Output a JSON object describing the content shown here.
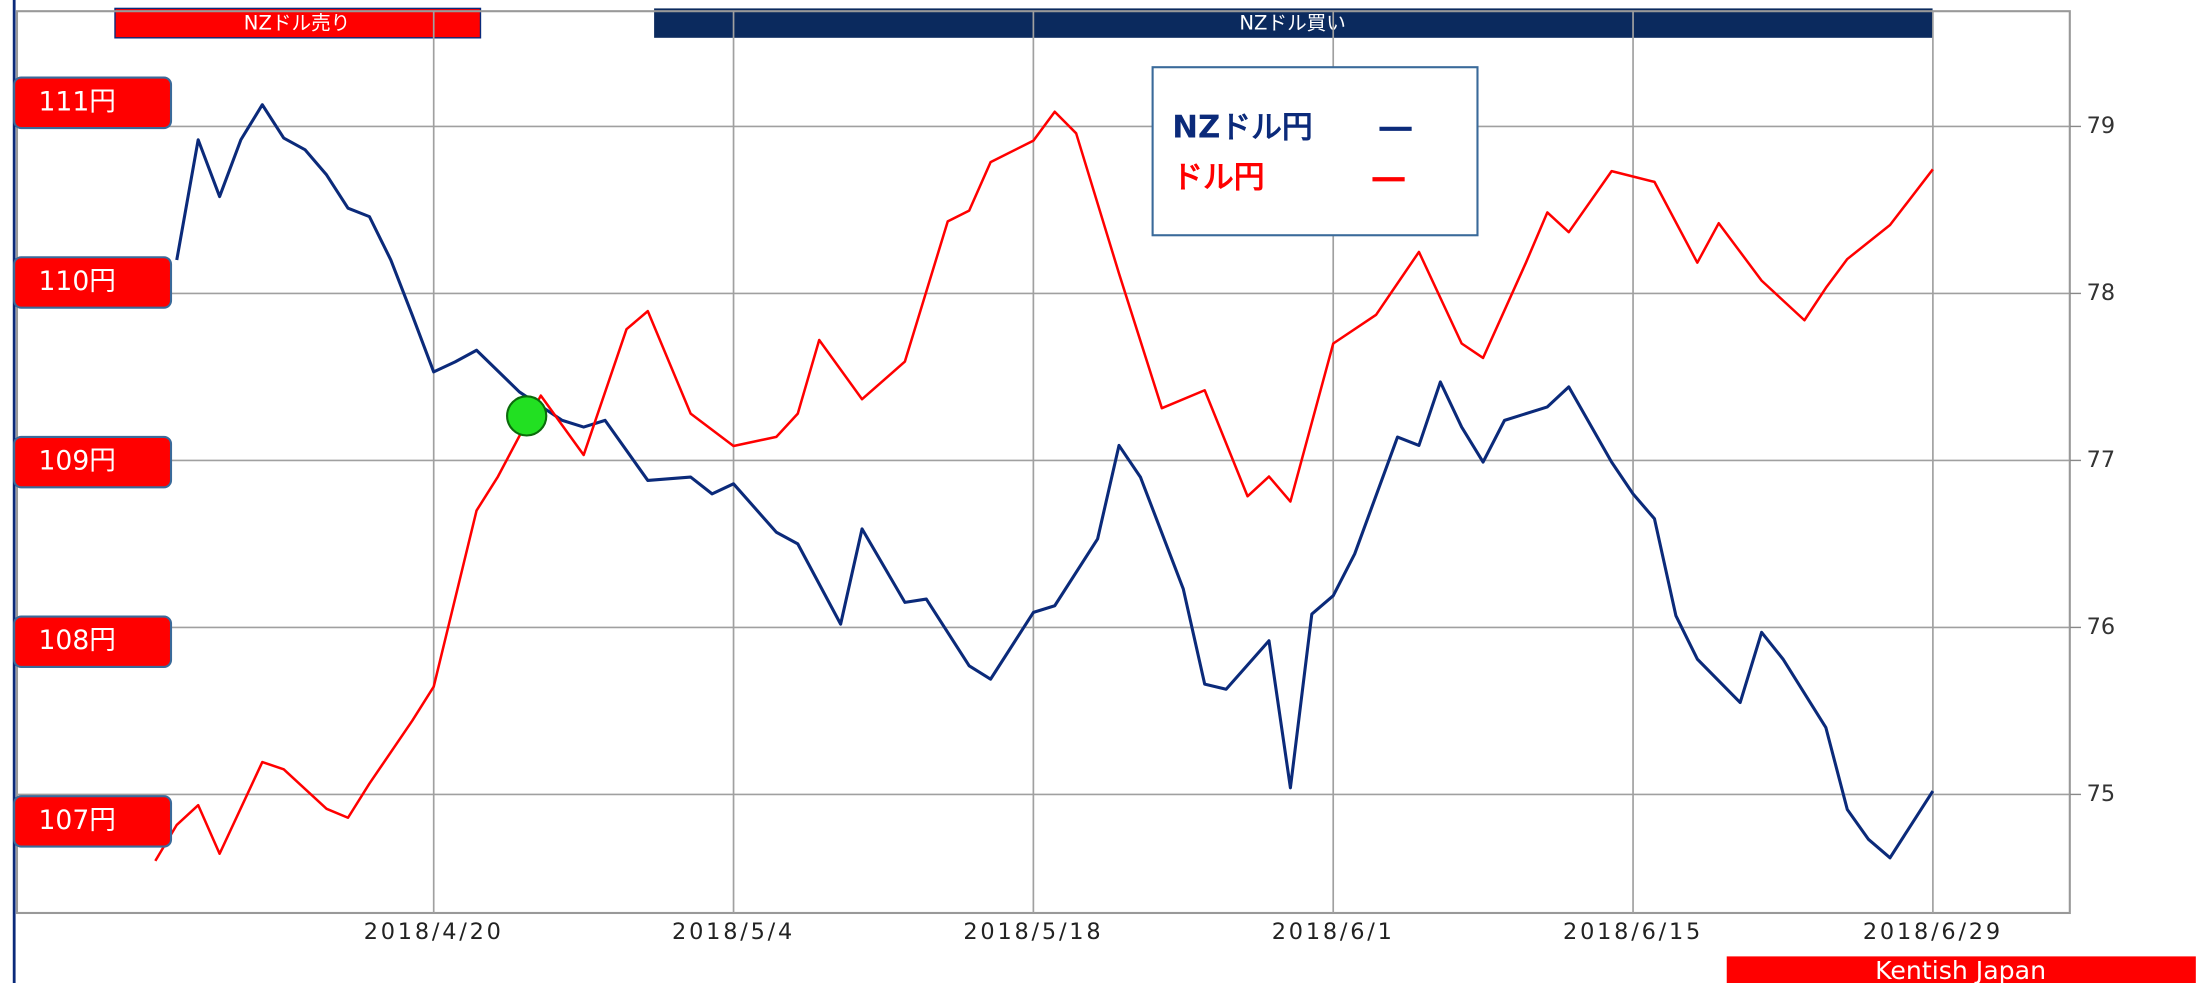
{
  "chart_data": {
    "type": "line",
    "banners": [
      "NZドル売り",
      "NZドル買い"
    ],
    "footer": "Kentish Japan",
    "xlim": [
      "2018/4/1",
      "2018/7/5"
    ],
    "xticks": [
      "2018/4/20",
      "2018/5/4",
      "2018/5/18",
      "2018/6/1",
      "2018/6/15",
      "2018/6/29"
    ],
    "ylim": [
      74.29,
      79.69
    ],
    "yticks": [
      75,
      76,
      77,
      78,
      79
    ],
    "y2lim": [
      106.49,
      111.51
    ],
    "y2ticks": [
      {
        "value": 107,
        "label": "107円"
      },
      {
        "value": 108,
        "label": "108円"
      },
      {
        "value": 109,
        "label": "109円"
      },
      {
        "value": 110,
        "label": "110円"
      },
      {
        "value": 111,
        "label": "111円"
      }
    ],
    "grid": true,
    "series": [
      {
        "name": "NZドル円",
        "color": "#0b2a7a",
        "axis": "y",
        "x": [
          "2018/4/8",
          "2018/4/9",
          "2018/4/10",
          "2018/4/11",
          "2018/4/12",
          "2018/4/13",
          "2018/4/14",
          "2018/4/15",
          "2018/4/16",
          "2018/4/17",
          "2018/4/18",
          "2018/4/19",
          "2018/4/20",
          "2018/4/21",
          "2018/4/22",
          "2018/4/24",
          "2018/4/26",
          "2018/4/27",
          "2018/4/28",
          "2018/4/30",
          "2018/5/2",
          "2018/5/3",
          "2018/5/4",
          "2018/5/6",
          "2018/5/7",
          "2018/5/9",
          "2018/5/10",
          "2018/5/12",
          "2018/5/13",
          "2018/5/15",
          "2018/5/16",
          "2018/5/18",
          "2018/5/19",
          "2018/5/21",
          "2018/5/22",
          "2018/5/23",
          "2018/5/25",
          "2018/5/26",
          "2018/5/27",
          "2018/5/29",
          "2018/5/30",
          "2018/5/31",
          "2018/6/1",
          "2018/6/2",
          "2018/6/4",
          "2018/6/5",
          "2018/6/6",
          "2018/6/7",
          "2018/6/8",
          "2018/6/9",
          "2018/6/11",
          "2018/6/12",
          "2018/6/14",
          "2018/6/15",
          "2018/6/16",
          "2018/6/17",
          "2018/6/18",
          "2018/6/20",
          "2018/6/21",
          "2018/6/22",
          "2018/6/24",
          "2018/6/25",
          "2018/6/26",
          "2018/6/27",
          "2018/6/29"
        ],
        "values": [
          78.2,
          78.92,
          78.58,
          78.92,
          79.13,
          78.93,
          78.86,
          78.71,
          78.51,
          78.46,
          78.2,
          77.87,
          77.53,
          77.59,
          77.66,
          77.41,
          77.24,
          77.2,
          77.24,
          76.88,
          76.9,
          76.8,
          76.86,
          76.57,
          76.5,
          76.02,
          76.59,
          76.15,
          76.17,
          75.77,
          75.69,
          76.09,
          76.13,
          76.53,
          77.09,
          76.9,
          76.23,
          75.66,
          75.63,
          75.92,
          75.04,
          76.08,
          76.19,
          76.44,
          77.14,
          77.09,
          77.47,
          77.2,
          76.99,
          77.24,
          77.32,
          77.44,
          76.99,
          76.8,
          76.65,
          76.07,
          75.81,
          75.55,
          75.97,
          75.81,
          75.4,
          74.91,
          74.73,
          74.62,
          75.02
        ]
      },
      {
        "name": "ドル円",
        "color": "#ff0000",
        "axis": "y2",
        "x": [
          "2018/4/7",
          "2018/4/8",
          "2018/4/9",
          "2018/4/10",
          "2018/4/12",
          "2018/4/13",
          "2018/4/15",
          "2018/4/16",
          "2018/4/17",
          "2018/4/19",
          "2018/4/20",
          "2018/4/22",
          "2018/4/23",
          "2018/4/25",
          "2018/4/27",
          "2018/4/29",
          "2018/4/30",
          "2018/5/2",
          "2018/5/4",
          "2018/5/6",
          "2018/5/7",
          "2018/5/8",
          "2018/5/10",
          "2018/5/12",
          "2018/5/14",
          "2018/5/15",
          "2018/5/16",
          "2018/5/18",
          "2018/5/19",
          "2018/5/20",
          "2018/5/22",
          "2018/5/24",
          "2018/5/26",
          "2018/5/28",
          "2018/5/29",
          "2018/5/30",
          "2018/6/1",
          "2018/6/3",
          "2018/6/5",
          "2018/6/7",
          "2018/6/8",
          "2018/6/10",
          "2018/6/11",
          "2018/6/12",
          "2018/6/14",
          "2018/6/16",
          "2018/6/18",
          "2018/6/19",
          "2018/6/21",
          "2018/6/23",
          "2018/6/24",
          "2018/6/25",
          "2018/6/27",
          "2018/6/29"
        ],
        "values": [
          106.78,
          106.98,
          107.09,
          106.82,
          107.33,
          107.29,
          107.07,
          107.02,
          107.21,
          107.56,
          107.75,
          108.73,
          108.92,
          109.37,
          109.04,
          109.74,
          109.84,
          109.27,
          109.09,
          109.14,
          109.27,
          109.68,
          109.35,
          109.56,
          110.34,
          110.4,
          110.67,
          110.79,
          110.95,
          110.83,
          110.05,
          109.3,
          109.4,
          108.81,
          108.92,
          108.78,
          109.66,
          109.82,
          110.17,
          109.66,
          109.58,
          110.11,
          110.39,
          110.28,
          110.62,
          110.56,
          110.11,
          110.33,
          110.01,
          109.79,
          109.97,
          110.13,
          110.32,
          110.63
        ]
      }
    ]
  }
}
